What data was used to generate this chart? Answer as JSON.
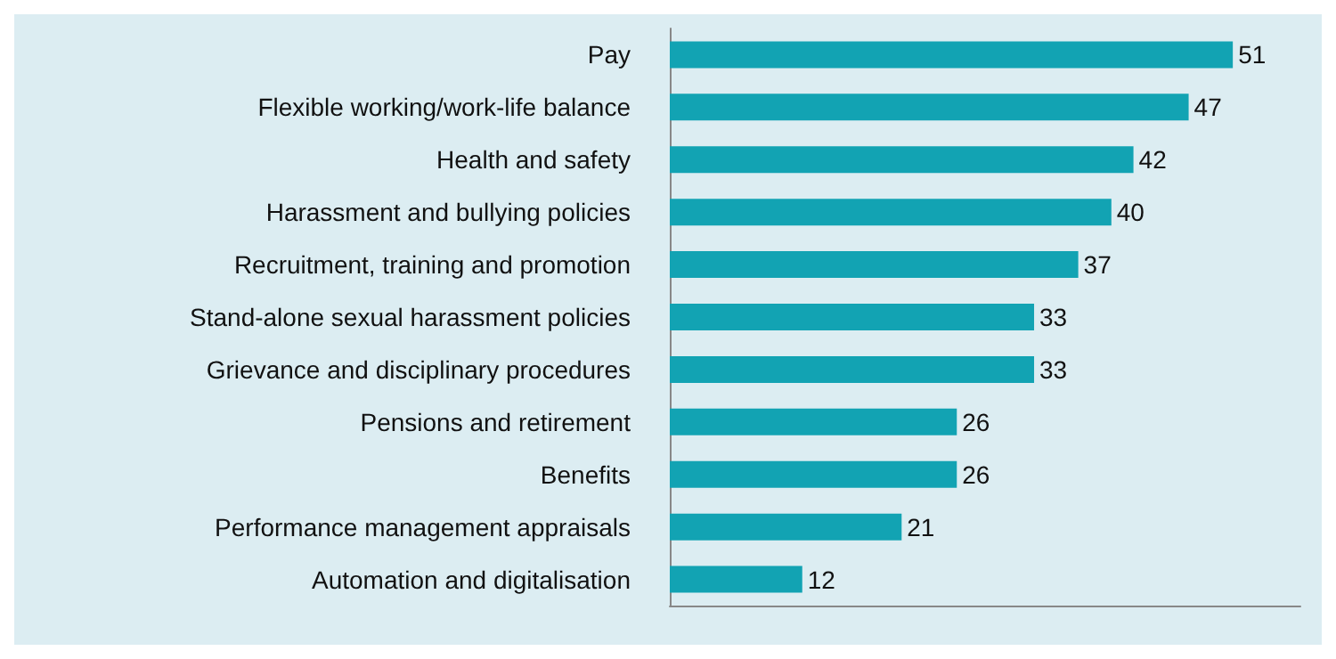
{
  "chart_data": {
    "type": "bar",
    "orientation": "horizontal",
    "categories": [
      "Pay",
      "Flexible working/work-life balance",
      "Health and safety",
      "Harassment and bullying policies",
      "Recruitment, training and promotion",
      "Stand-alone sexual harassment policies",
      "Grievance and disciplinary procedures",
      "Pensions and retirement",
      "Benefits",
      "Performance management appraisals",
      "Automation and digitalisation"
    ],
    "values": [
      51,
      47,
      42,
      40,
      37,
      33,
      33,
      26,
      26,
      21,
      12
    ],
    "color": "#12a3b3",
    "data_labels": true,
    "tick_labels": "y",
    "grid": false
  }
}
